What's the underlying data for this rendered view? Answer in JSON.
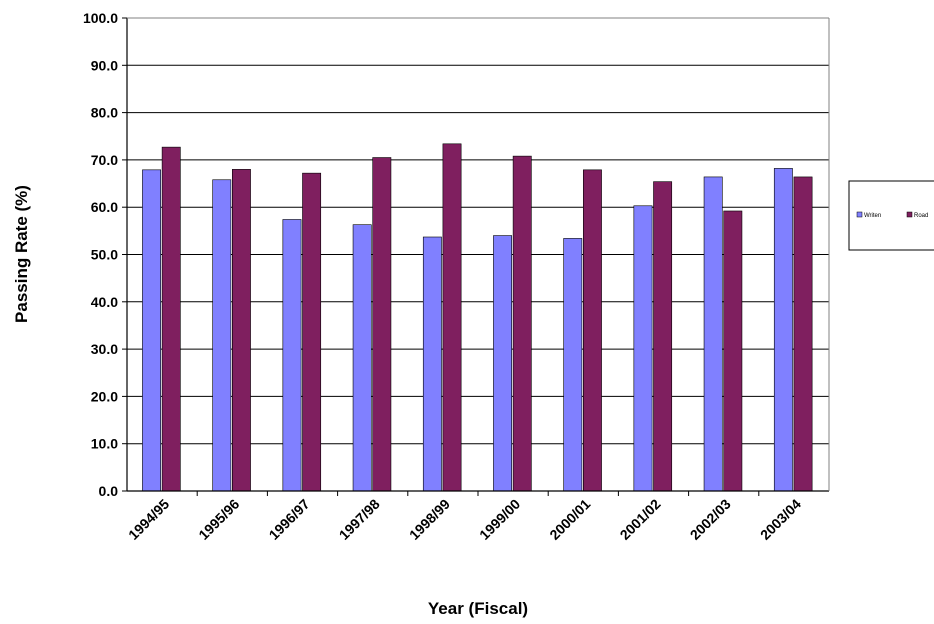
{
  "chart_data": {
    "type": "bar",
    "title": "",
    "xlabel": "Year (Fiscal)",
    "ylabel": "Passing Rate (%)",
    "ylim": [
      0,
      100
    ],
    "ytick_step": 10,
    "grid": true,
    "legend_position": "right",
    "categories": [
      "1994/95",
      "1995/96",
      "1996/97",
      "1997/98",
      "1998/99",
      "1999/00",
      "2000/01",
      "2001/02",
      "2002/03",
      "2003/04"
    ],
    "series": [
      {
        "name": "Writen",
        "color": "#8080ff",
        "values": [
          67.9,
          65.8,
          57.4,
          56.3,
          53.7,
          54.0,
          53.4,
          60.3,
          66.4,
          68.2
        ]
      },
      {
        "name": "Road",
        "color": "#7f1f5f",
        "values": [
          72.7,
          68.0,
          67.2,
          70.5,
          73.4,
          70.8,
          67.9,
          65.4,
          59.2,
          66.4
        ]
      }
    ]
  }
}
